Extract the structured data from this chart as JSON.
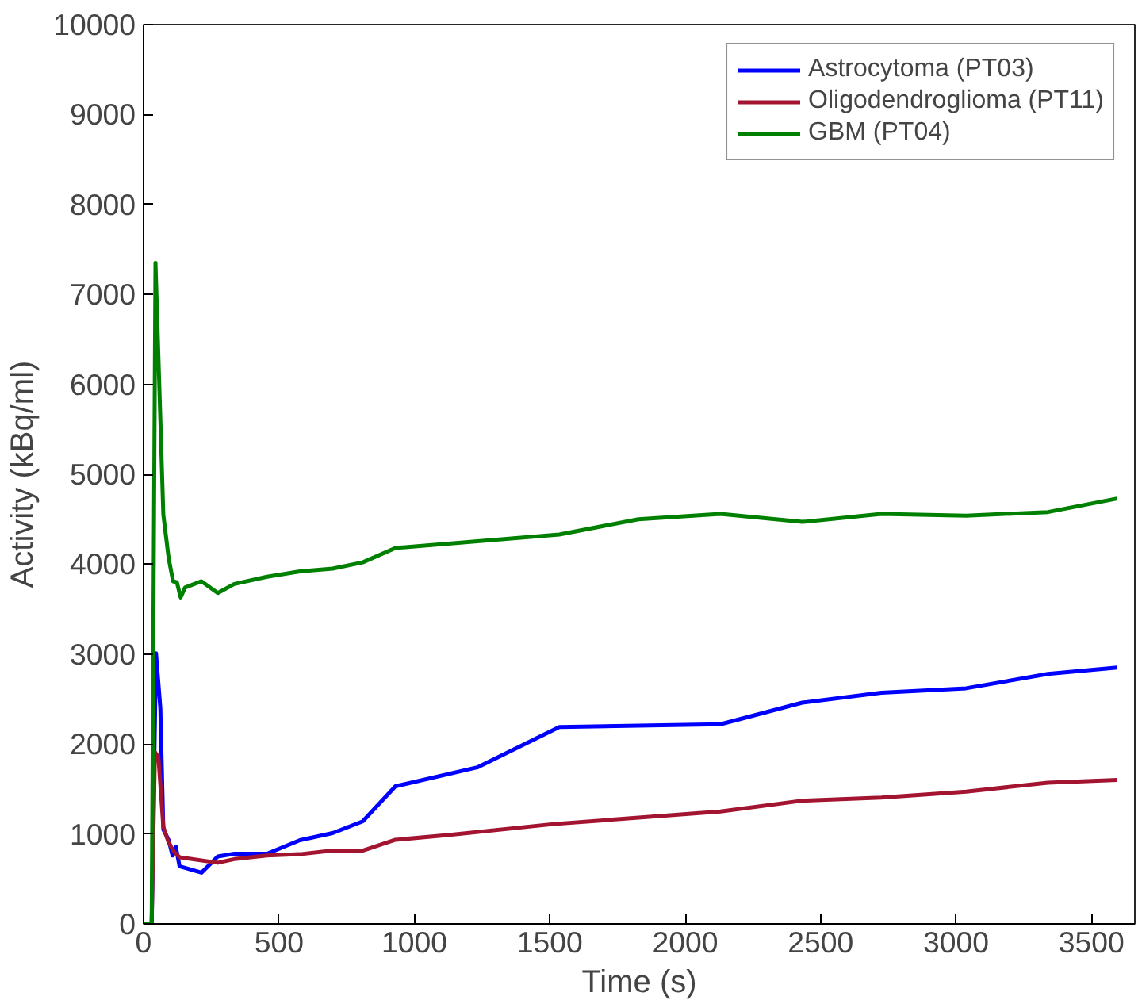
{
  "chart_data": {
    "type": "line",
    "xlabel": "Time (s)",
    "ylabel": "Activity (kBq/ml)",
    "xlim": [
      0,
      3660
    ],
    "ylim": [
      0,
      10000
    ],
    "xticks": [
      0,
      500,
      1000,
      1500,
      2000,
      2500,
      3000,
      3500
    ],
    "yticks": [
      0,
      1000,
      2000,
      3000,
      4000,
      5000,
      6000,
      7000,
      8000,
      9000,
      10000
    ],
    "grid": false,
    "legend": "top right",
    "line_style": "solid",
    "marker": "none",
    "series": [
      {
        "name": "Astrocytoma (PT03)",
        "color": "#0000ff",
        "x": [
          0,
          30,
          46,
          62,
          73,
          93,
          107,
          119,
          133,
          214,
          274,
          335,
          456,
          577,
          698,
          809,
          930,
          1232,
          1535,
          2130,
          2432,
          2724,
          3037,
          3339,
          3595
        ],
        "values": [
          0,
          0,
          3010,
          2400,
          1050,
          930,
          760,
          860,
          640,
          570,
          750,
          780,
          780,
          930,
          1010,
          1140,
          1530,
          1740,
          2190,
          2220,
          2460,
          2570,
          2620,
          2780,
          2850
        ]
      },
      {
        "name": "Oligodendroglioma (PT11)",
        "color": "#a2142f",
        "x": [
          0,
          30,
          42,
          55,
          73,
          93,
          113,
          133,
          274,
          335,
          456,
          577,
          698,
          809,
          930,
          1131,
          1514,
          2130,
          2432,
          2724,
          3037,
          3339,
          3595
        ],
        "values": [
          0,
          0,
          1910,
          1850,
          1080,
          900,
          800,
          740,
          680,
          720,
          760,
          775,
          815,
          815,
          935,
          990,
          1110,
          1250,
          1370,
          1405,
          1470,
          1570,
          1600
        ]
      },
      {
        "name": "GBM (PT04)",
        "color": "#008000",
        "x": [
          0,
          30,
          44,
          73,
          93,
          109,
          123,
          137,
          153,
          214,
          274,
          335,
          456,
          577,
          698,
          809,
          930,
          1535,
          1827,
          2130,
          2432,
          2724,
          3037,
          3339,
          3595
        ],
        "values": [
          0,
          0,
          7350,
          4550,
          4060,
          3810,
          3800,
          3630,
          3740,
          3810,
          3680,
          3780,
          3860,
          3920,
          3950,
          4020,
          4180,
          4330,
          4500,
          4560,
          4470,
          4560,
          4540,
          4580,
          4730
        ]
      }
    ]
  }
}
